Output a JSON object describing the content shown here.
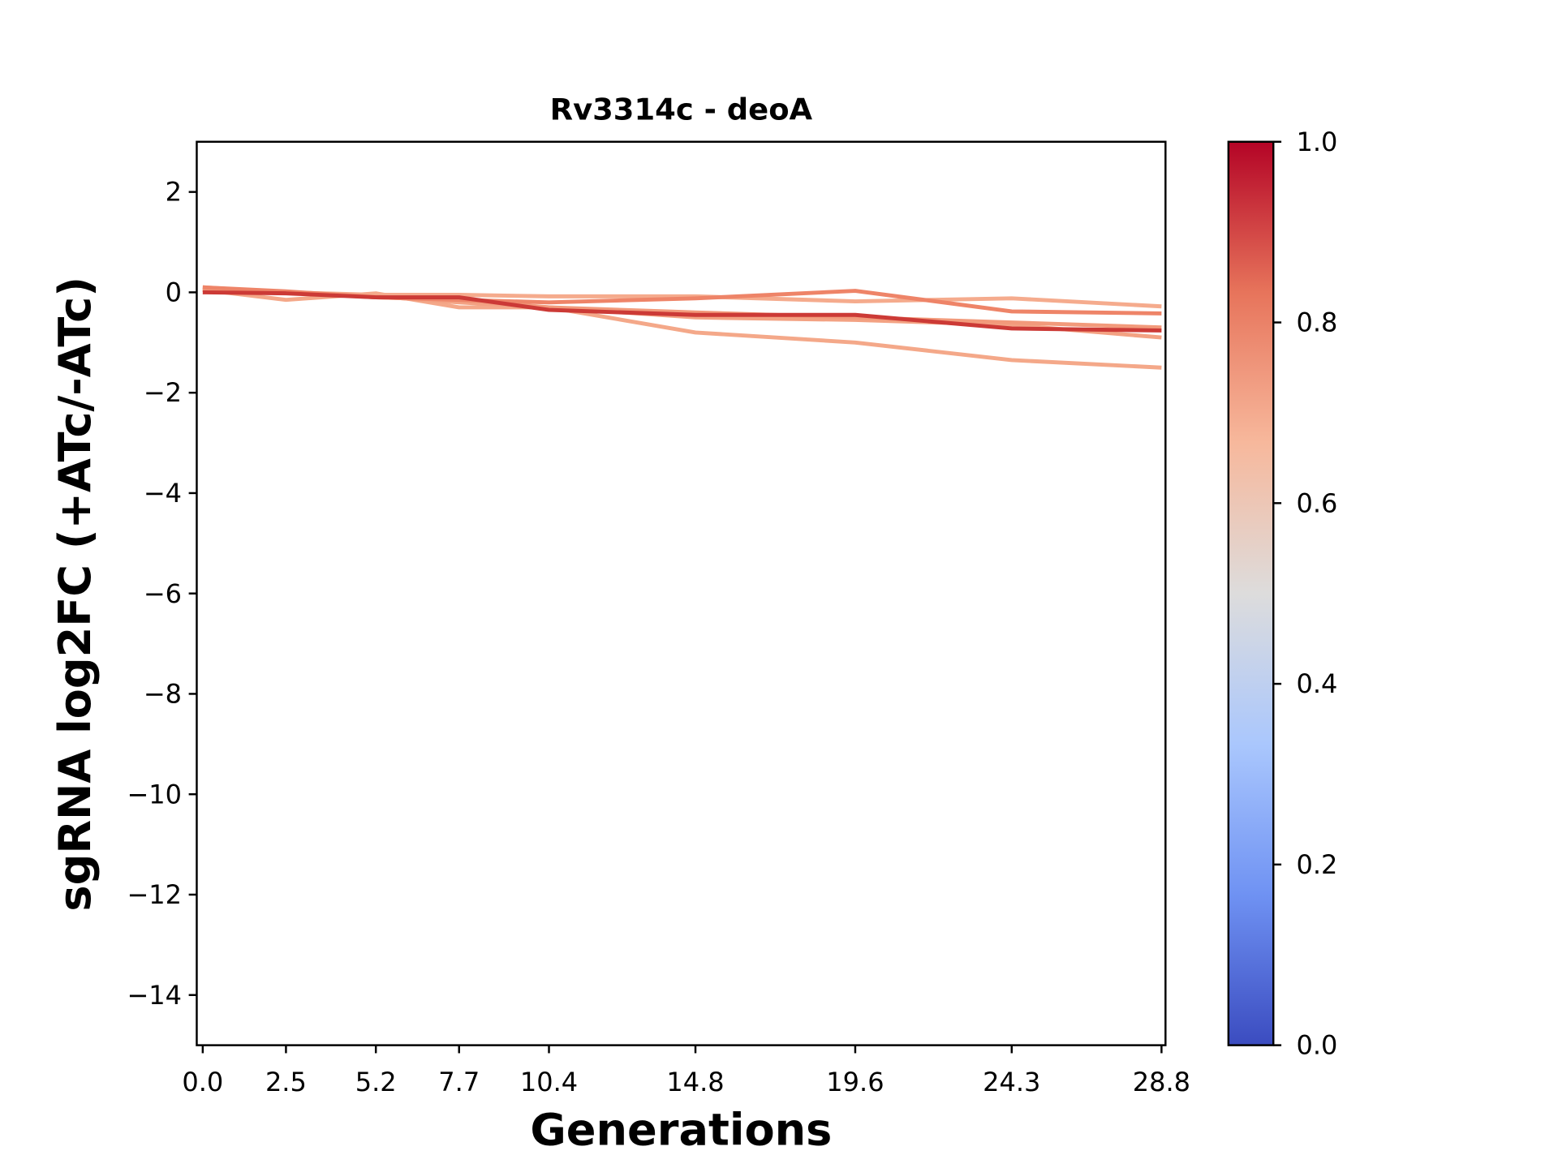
{
  "chart_data": {
    "type": "line",
    "title": "Rv3314c - deoA",
    "xlabel": "Generations",
    "ylabel": "sgRNA log2FC (+ATc/-ATc)",
    "x": [
      0.0,
      2.5,
      5.2,
      7.7,
      10.4,
      14.8,
      19.6,
      24.3,
      28.8
    ],
    "xtick_labels": [
      "0.0",
      "2.5",
      "5.2",
      "7.7",
      "10.4",
      "14.8",
      "19.6",
      "24.3",
      "28.8"
    ],
    "ylim": [
      -15,
      3
    ],
    "yticks": [
      2,
      0,
      -2,
      -4,
      -6,
      -8,
      -10,
      -12,
      -14
    ],
    "ytick_labels": [
      "2",
      "0",
      "−2",
      "−4",
      "−6",
      "−8",
      "−10",
      "−12",
      "−14"
    ],
    "grid": false,
    "series": [
      {
        "values": [
          0.05,
          -0.15,
          -0.02,
          -0.3,
          -0.3,
          -0.8,
          -1.0,
          -1.35,
          -1.5
        ],
        "color_value": 0.7,
        "color": "#f4a889"
      },
      {
        "values": [
          0.05,
          0.0,
          -0.05,
          -0.05,
          -0.08,
          -0.08,
          -0.18,
          -0.12,
          -0.28
        ],
        "color_value": 0.7,
        "color": "#f5ab8d"
      },
      {
        "values": [
          0.1,
          0.0,
          -0.08,
          -0.2,
          -0.3,
          -0.5,
          -0.55,
          -0.65,
          -0.9
        ],
        "color_value": 0.72,
        "color": "#f3a283"
      },
      {
        "values": [
          0.05,
          0.0,
          -0.1,
          -0.15,
          -0.3,
          -0.4,
          -0.5,
          -0.6,
          -0.7
        ],
        "color_value": 0.75,
        "color": "#f29a7b"
      },
      {
        "values": [
          0.1,
          0.02,
          -0.1,
          -0.15,
          -0.2,
          -0.12,
          0.03,
          -0.38,
          -0.42
        ],
        "color_value": 0.8,
        "color": "#ee8468"
      },
      {
        "values": [
          0.0,
          -0.02,
          -0.1,
          -0.1,
          -0.35,
          -0.45,
          -0.45,
          -0.72,
          -0.76
        ],
        "color_value": 0.95,
        "color": "#cc3a36"
      }
    ],
    "colorbar": {
      "colormap": "coolwarm",
      "range": [
        0,
        1
      ],
      "ticks": [
        0.0,
        0.2,
        0.4,
        0.6,
        0.8,
        1.0
      ],
      "tick_labels": [
        "0.0",
        "0.2",
        "0.4",
        "0.6",
        "0.8",
        "1.0"
      ],
      "colors": [
        "#3b4cc0",
        "#6f92f3",
        "#aac7fd",
        "#dddcdc",
        "#f7b89c",
        "#e7745b",
        "#b40426"
      ]
    }
  }
}
